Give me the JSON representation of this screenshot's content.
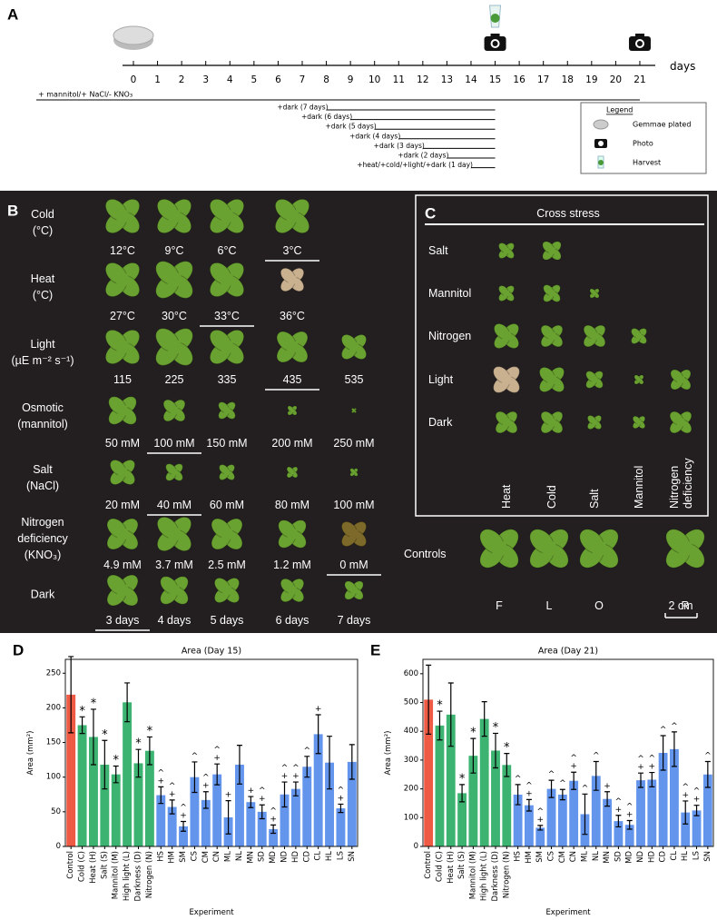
{
  "panel_a": {
    "label": "A",
    "days": [
      0,
      1,
      2,
      3,
      4,
      5,
      6,
      7,
      8,
      9,
      10,
      11,
      12,
      13,
      14,
      15,
      16,
      17,
      18,
      19,
      20,
      21
    ],
    "axis_label": "days",
    "treatment": "+ mannitol/+ NaCl/- KNO₃",
    "dark_treatments": [
      "+dark (7 days)",
      "+dark (6 days)",
      "+dark (5 days)",
      "+dark (4 days)",
      "+dark (3 days)",
      "+dark (2 days)",
      "+heat/+cold/+light/+dark (1 day)"
    ],
    "legend": {
      "title": "Legend",
      "items": [
        "Gemmae plated",
        "Photo",
        "Harvest"
      ]
    }
  },
  "panel_b": {
    "label": "B",
    "rows": [
      {
        "name": [
          "Cold",
          "(°C)"
        ],
        "conditions": [
          "12°C",
          "9°C",
          "6°C",
          "3°C"
        ],
        "underlined": 3
      },
      {
        "name": [
          "Heat",
          "(°C)"
        ],
        "conditions": [
          "27°C",
          "30°C",
          "33°C",
          "36°C"
        ],
        "underlined": 2
      },
      {
        "name": [
          "Light",
          "(µE m⁻² s⁻¹)"
        ],
        "conditions": [
          "115",
          "225",
          "335",
          "435",
          "535"
        ],
        "underlined": 3
      },
      {
        "name": [
          "Osmotic",
          "(mannitol)"
        ],
        "conditions": [
          "50 mM",
          "100 mM",
          "150 mM",
          "200 mM",
          "250 mM"
        ],
        "underlined": 1
      },
      {
        "name": [
          "Salt",
          "(NaCl)"
        ],
        "conditions": [
          "20 mM",
          "40 mM",
          "60 mM",
          "80 mM",
          "100 mM"
        ],
        "underlined": 1
      },
      {
        "name": [
          "Nitrogen",
          "deficiency",
          "(KNO₃)"
        ],
        "conditions": [
          "4.9 mM",
          "3.7 mM",
          "2.5 mM",
          "1.2 mM",
          "0 mM"
        ],
        "underlined": 4
      },
      {
        "name": [
          "Dark"
        ],
        "conditions": [
          "3 days",
          "4 days",
          "5 days",
          "6 days",
          "7 days"
        ],
        "underlined": 0
      }
    ]
  },
  "panel_c": {
    "label": "C",
    "title": "Cross stress",
    "rows": [
      "Salt",
      "Mannitol",
      "Nitrogen",
      "Light",
      "Dark"
    ],
    "columns": [
      [
        "Heat"
      ],
      [
        "Cold"
      ],
      [
        "Salt"
      ],
      [
        "Mannitol"
      ],
      [
        "Nitrogen",
        "deficiency"
      ]
    ]
  },
  "controls": {
    "label": "Controls",
    "items": [
      "F",
      "L",
      "O",
      "R"
    ],
    "scale": "2 cm"
  },
  "chart_data": [
    {
      "type": "bar",
      "panel": "D",
      "title": "Area (Day 15)",
      "ylabel": "Area (mm²)",
      "xlabel": "Experiment",
      "categories": [
        "Control",
        "Cold (C)",
        "Heat (H)",
        "Salt (S)",
        "Mannitol (M)",
        "High light (L)",
        "Darkness (D)",
        "Nitrogen (N)",
        "HS",
        "HM",
        "SM",
        "CS",
        "CM",
        "CN",
        "ML",
        "NL",
        "MN",
        "SD",
        "MD",
        "ND",
        "HD",
        "CD",
        "CL",
        "HL",
        "LS",
        "SN"
      ],
      "values": [
        219,
        175,
        158,
        118,
        104,
        208,
        120,
        138,
        74,
        57,
        29,
        100,
        67,
        104,
        42,
        118,
        64,
        50,
        25,
        75,
        83,
        115,
        162,
        121,
        55,
        122
      ],
      "errors": [
        55,
        12,
        40,
        35,
        12,
        28,
        20,
        20,
        12,
        10,
        7,
        22,
        12,
        15,
        24,
        28,
        8,
        10,
        6,
        18,
        10,
        15,
        28,
        38,
        6,
        25
      ],
      "colors": [
        "#ef5a45",
        "#3cb371",
        "#3cb371",
        "#3cb371",
        "#3cb371",
        "#3cb371",
        "#3cb371",
        "#3cb371",
        "#6495ed",
        "#6495ed",
        "#6495ed",
        "#6495ed",
        "#6495ed",
        "#6495ed",
        "#6495ed",
        "#6495ed",
        "#6495ed",
        "#6495ed",
        "#6495ed",
        "#6495ed",
        "#6495ed",
        "#6495ed",
        "#6495ed",
        "#6495ed",
        "#6495ed",
        "#6495ed"
      ],
      "annotations": [
        [],
        [
          "*"
        ],
        [
          "*"
        ],
        [
          "*"
        ],
        [
          "*"
        ],
        [],
        [
          "*"
        ],
        [
          "*"
        ],
        [
          "+",
          "^"
        ],
        [
          "+",
          "^"
        ],
        [
          "+",
          "^"
        ],
        [
          "^"
        ],
        [
          "+",
          "^"
        ],
        [
          "+",
          "^"
        ],
        [
          "+"
        ],
        [],
        [
          "+"
        ],
        [
          "+",
          "^"
        ],
        [
          "+",
          "^"
        ],
        [
          "+",
          "^"
        ],
        [
          "+",
          "^"
        ],
        [
          "^"
        ],
        [
          "+"
        ],
        [],
        [
          "+",
          "^"
        ],
        []
      ],
      "ylim": [
        0,
        270
      ],
      "yticks": [
        0,
        50,
        100,
        150,
        200,
        250
      ]
    },
    {
      "type": "bar",
      "panel": "E",
      "title": "Area (Day 21)",
      "ylabel": "Area (mm²)",
      "xlabel": "Experiment",
      "categories": [
        "Control",
        "Cold (C)",
        "Heat (H)",
        "Salt (S)",
        "Mannitol (M)",
        "High light (L)",
        "Darkness (D)",
        "Nitrogen (N)",
        "HS",
        "HM",
        "SM",
        "CS",
        "CM",
        "CN",
        "ML",
        "NL",
        "MN",
        "SD",
        "MD",
        "ND",
        "HD",
        "CD",
        "CL",
        "HL",
        "LS",
        "SN"
      ],
      "values": [
        510,
        420,
        458,
        185,
        315,
        443,
        333,
        283,
        180,
        143,
        65,
        200,
        180,
        228,
        112,
        245,
        165,
        88,
        75,
        230,
        232,
        325,
        338,
        118,
        125,
        250
      ],
      "errors": [
        120,
        50,
        110,
        30,
        60,
        60,
        60,
        40,
        35,
        20,
        8,
        30,
        18,
        30,
        70,
        50,
        25,
        20,
        15,
        25,
        25,
        60,
        60,
        40,
        18,
        45
      ],
      "colors": [
        "#ef5a45",
        "#3cb371",
        "#3cb371",
        "#3cb371",
        "#3cb371",
        "#3cb371",
        "#3cb371",
        "#3cb371",
        "#6495ed",
        "#6495ed",
        "#6495ed",
        "#6495ed",
        "#6495ed",
        "#6495ed",
        "#6495ed",
        "#6495ed",
        "#6495ed",
        "#6495ed",
        "#6495ed",
        "#6495ed",
        "#6495ed",
        "#6495ed",
        "#6495ed",
        "#6495ed",
        "#6495ed",
        "#6495ed"
      ],
      "annotations": [
        [],
        [
          "*"
        ],
        [],
        [
          "*"
        ],
        [
          "*"
        ],
        [],
        [
          "*"
        ],
        [
          "*"
        ],
        [
          "^"
        ],
        [
          "+",
          "^"
        ],
        [
          "+",
          "^"
        ],
        [
          "^"
        ],
        [
          "^"
        ],
        [
          "+",
          "^"
        ],
        [
          "^"
        ],
        [
          "^"
        ],
        [
          "+"
        ],
        [
          "+",
          "^"
        ],
        [
          "+",
          "^"
        ],
        [
          "+",
          "^"
        ],
        [
          "+",
          "^"
        ],
        [
          "^"
        ],
        [
          "^"
        ],
        [
          "+",
          "^"
        ],
        [
          "+",
          "^"
        ],
        [
          "^"
        ]
      ],
      "ylim": [
        0,
        650
      ],
      "yticks": [
        0,
        100,
        200,
        300,
        400,
        500,
        600
      ]
    }
  ]
}
